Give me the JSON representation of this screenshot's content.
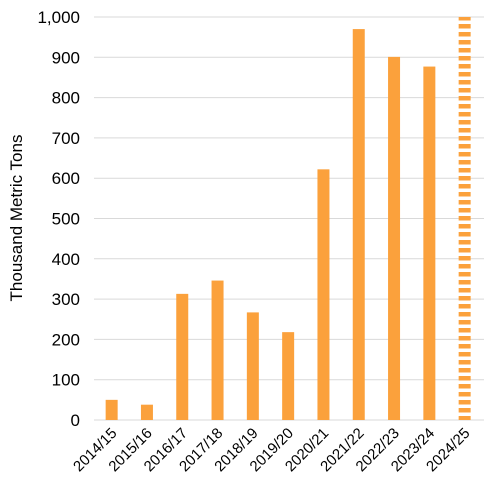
{
  "chart_data": {
    "type": "bar",
    "title": "",
    "xlabel": "",
    "ylabel": "Thousand Metric Tons",
    "ylim": [
      0,
      1000
    ],
    "ytick_step": 100,
    "yticks": [
      "0",
      "100",
      "200",
      "300",
      "400",
      "500",
      "600",
      "700",
      "800",
      "900",
      "1,000"
    ],
    "grid": "horizontal",
    "bar_color": "#FBA13C",
    "categories": [
      "2014/15",
      "2015/16",
      "2016/17",
      "2017/18",
      "2018/19",
      "2019/20",
      "2020/21",
      "2021/22",
      "2022/23",
      "2023/24",
      "2024/25"
    ],
    "values": [
      50,
      38,
      313,
      346,
      267,
      218,
      622,
      970,
      901,
      877,
      1000
    ],
    "forecast": [
      false,
      false,
      false,
      false,
      false,
      false,
      false,
      false,
      false,
      false,
      true
    ]
  }
}
